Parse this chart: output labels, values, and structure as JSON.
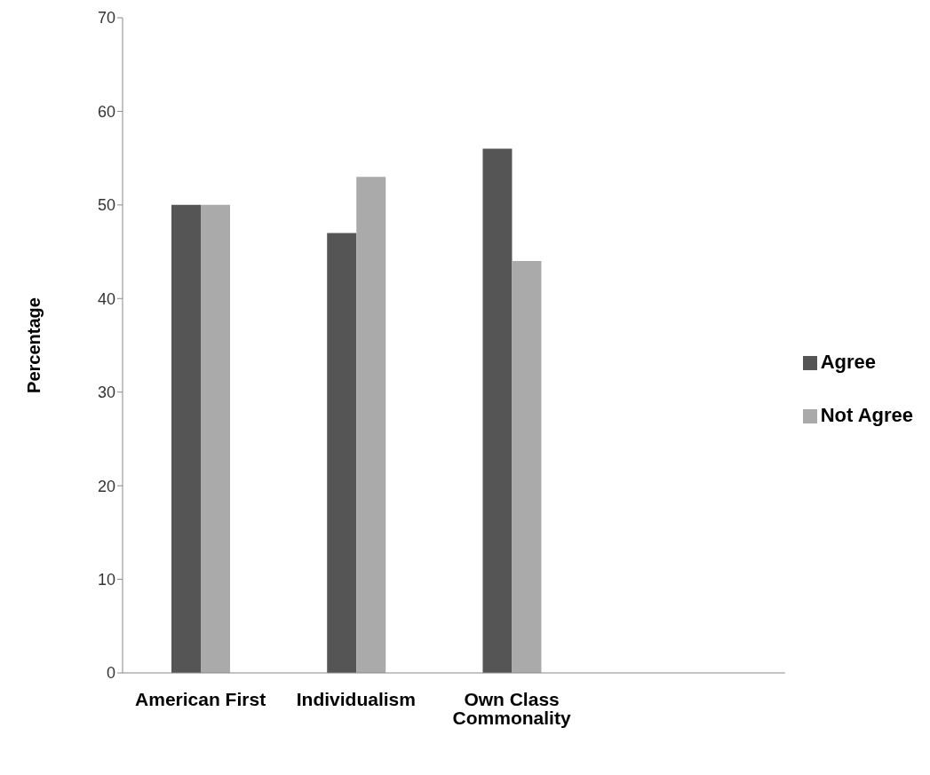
{
  "chart_data": {
    "type": "bar",
    "ylabel": "Percentage",
    "categories": [
      "American First",
      "Individualism",
      "Own Class Commonality"
    ],
    "series": [
      {
        "name": "Agree",
        "color": "#555555",
        "values": [
          50,
          47,
          56
        ]
      },
      {
        "name": "Not Agree",
        "color": "#aaaaaa",
        "values": [
          50,
          53,
          44
        ]
      }
    ],
    "ylim": [
      0,
      70
    ],
    "yticks": [
      0,
      10,
      20,
      30,
      40,
      50,
      60,
      70
    ],
    "grid": false,
    "legend": "right"
  }
}
